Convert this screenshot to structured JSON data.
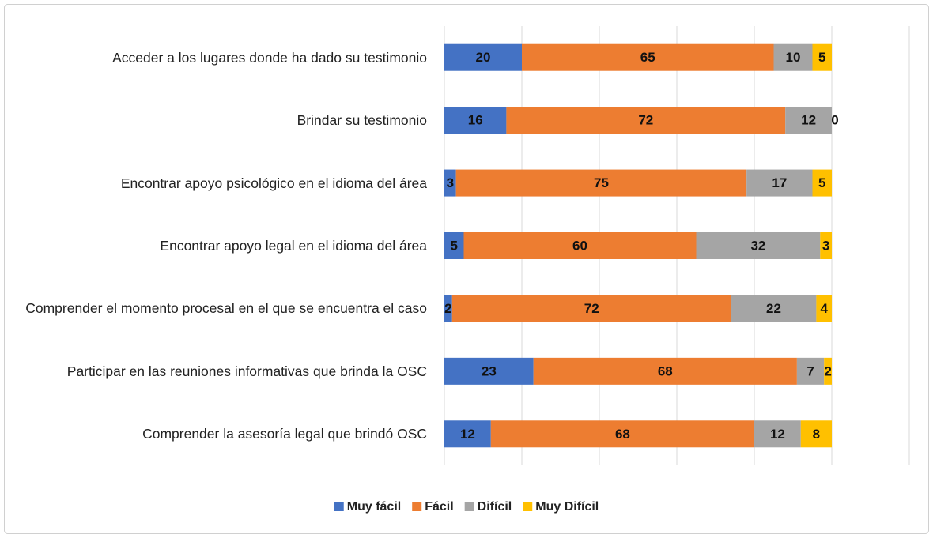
{
  "chart_data": {
    "type": "stacked_barh",
    "categories": [
      "Acceder a los lugares donde ha dado su testimonio",
      "Brindar su testimonio",
      "Encontrar apoyo psicológico en el idioma del área",
      "Encontrar apoyo legal en el idioma del área",
      "Comprender el momento procesal en el que se encuentra el caso",
      "Participar en las reuniones informativas que brinda la OSC",
      "Comprender la asesoría legal que brindó OSC"
    ],
    "series": [
      {
        "name": "Muy fácil",
        "color": "#4472c4",
        "values": [
          20,
          16,
          3,
          5,
          2,
          23,
          12
        ]
      },
      {
        "name": "Fácil",
        "color": "#ed7d31",
        "values": [
          65,
          72,
          75,
          60,
          72,
          68,
          68
        ]
      },
      {
        "name": "Difícil",
        "color": "#a5a5a5",
        "values": [
          10,
          12,
          17,
          32,
          22,
          7,
          12
        ]
      },
      {
        "name": "Muy Difícil",
        "color": "#ffc000",
        "values": [
          5,
          0,
          5,
          3,
          4,
          2,
          8
        ]
      }
    ],
    "xlim": [
      0,
      120
    ],
    "xticks": [
      0,
      20,
      40,
      60,
      80,
      100,
      120
    ],
    "grid": true,
    "legend": "bottom"
  }
}
